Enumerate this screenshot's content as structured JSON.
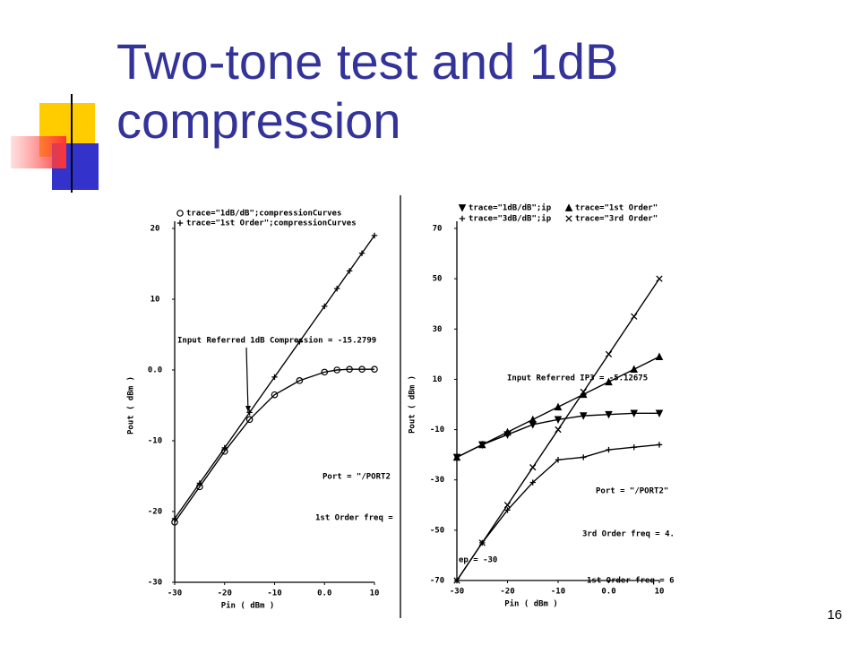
{
  "slide": {
    "title": "Two-tone test and 1dB compression",
    "page_number": "16"
  },
  "chart_data": [
    {
      "type": "line",
      "xlabel": "Pin ( dBm )",
      "ylabel": "Pout ( dBm )",
      "x": [
        -30,
        -25,
        -20,
        -15,
        -10,
        -5,
        0,
        2.5,
        5,
        7.5,
        10
      ],
      "series": [
        {
          "name": "trace=\"1dB/dB\";compressionCurves",
          "color": "#000000",
          "values": [
            -21.5,
            -16.5,
            -11.5,
            -7,
            -3.5,
            -1.5,
            -0.3,
            0,
            0.1,
            0.1,
            0.1
          ]
        },
        {
          "name": "trace=\"1st Order\";compressionCurves",
          "color": "#000000",
          "values": [
            -21,
            -16,
            -11,
            -6,
            -1,
            4,
            9,
            11.5,
            14,
            16.5,
            19
          ]
        }
      ],
      "xlim": [
        -30,
        10
      ],
      "xticks": [
        -30,
        -20,
        -10,
        {
          "value": 0,
          "label": "0.0"
        },
        10
      ],
      "ylim": [
        -30,
        20
      ],
      "yticks": [
        -30,
        -20,
        -10,
        {
          "value": 0,
          "label": "0.0"
        },
        10,
        20
      ],
      "annotations": [
        "Input Referred 1dB Compression = -15.2799",
        "Port = \"/PORT2",
        "1st Order freq ="
      ]
    },
    {
      "type": "line",
      "xlabel": "Pin ( dBm )",
      "ylabel": "Pout ( dBm )",
      "x": [
        -30,
        -25,
        -20,
        -15,
        -10,
        -5,
        0,
        5,
        10
      ],
      "series": [
        {
          "name": "trace=\"1dB/dB\";ip",
          "color": "#000000",
          "values": [
            -21,
            -16,
            -12,
            -8,
            -6,
            -4.5,
            -4,
            -3.5,
            -3.5
          ]
        },
        {
          "name": "trace=\"1st Order\"",
          "color": "#000000",
          "values": [
            -21,
            -16,
            -11,
            -6,
            -1,
            4,
            9,
            14,
            19
          ]
        },
        {
          "name": "trace=\"3dB/dB\";ip",
          "color": "#000000",
          "values": [
            -70,
            -55,
            -42,
            -31,
            -22,
            -21,
            -18,
            -17,
            -16
          ]
        },
        {
          "name": "trace=\"3rd Order\"",
          "color": "#000000",
          "values": [
            -70,
            -55,
            -40,
            -25,
            -10,
            5,
            20,
            35,
            50
          ]
        }
      ],
      "xlim": [
        -30,
        10
      ],
      "xticks": [
        -30,
        -20,
        -10,
        {
          "value": 0,
          "label": "0.0"
        },
        10
      ],
      "ylim": [
        -70,
        70
      ],
      "yticks": [
        -70,
        -50,
        -30,
        -10,
        10,
        30,
        50,
        70
      ],
      "annotations": [
        "Input Referred IP3 = -5.12675",
        "Port = \"/PORT2\"",
        "3rd Order freq = 4.",
        "1st Order freq = 6",
        "ep = -30"
      ]
    }
  ]
}
